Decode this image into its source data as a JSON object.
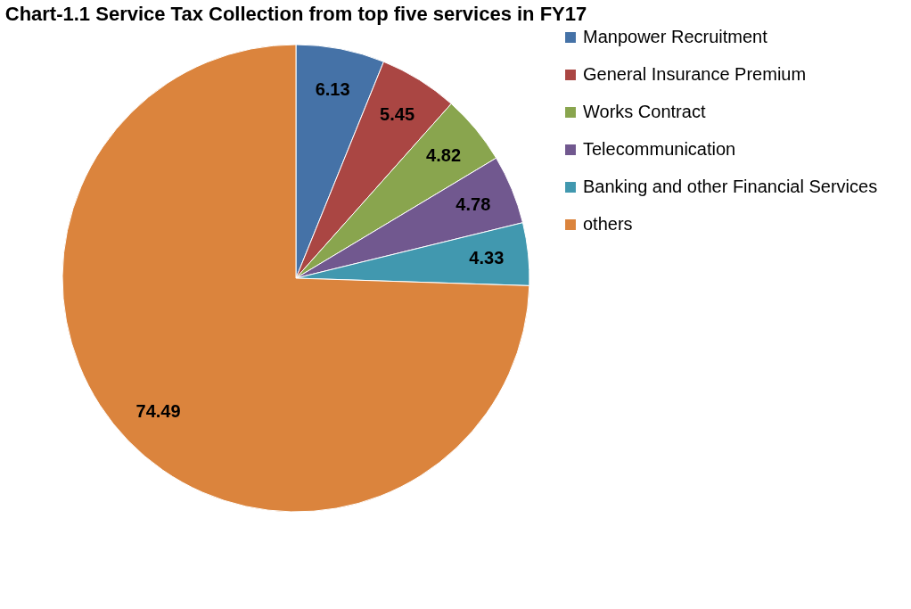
{
  "chart_data": {
    "type": "pie",
    "title": "Chart-1.1 Service Tax Collection from top five services in FY17",
    "categories": [
      "Manpower Recruitment",
      "General Insurance Premium",
      "Works Contract",
      "Telecommunication",
      "Banking and other Financial Services",
      "others"
    ],
    "values": [
      6.13,
      5.45,
      4.82,
      4.78,
      4.33,
      74.49
    ],
    "colors": [
      "#4572a7",
      "#aa4643",
      "#89a54e",
      "#71588f",
      "#4198af",
      "#db843d"
    ],
    "data_labels": true,
    "legend": "right"
  }
}
